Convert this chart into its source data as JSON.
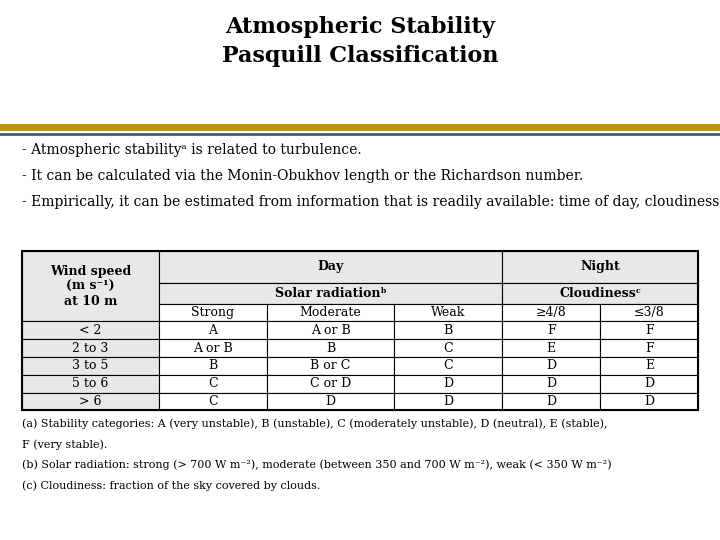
{
  "title_line1": "Atmospheric Stability",
  "title_line2": "Pasquill Classification",
  "title_fontsize": 16,
  "bg_color": "#ffffff",
  "separator_color_gold": "#B8960C",
  "separator_color_blue": "#4A5A7A",
  "body_text": [
    "- Atmospheric stabilityᵃ is related to turbulence.",
    "- It can be calculated via the Monin-Obukhov length or the Richardson number.",
    "- Empirically, it can be estimated from information that is readily available: time of day, cloudiness, and wind speed."
  ],
  "body_fontsize": 10,
  "table_data": [
    [
      "< 2",
      "A",
      "A or B",
      "B",
      "F",
      "F"
    ],
    [
      "2 to 3",
      "A or B",
      "B",
      "C",
      "E",
      "F"
    ],
    [
      "3 to 5",
      "B",
      "B or C",
      "C",
      "D",
      "E"
    ],
    [
      "5 to 6",
      "C",
      "C or D",
      "D",
      "D",
      "D"
    ],
    [
      "> 6",
      "C",
      "D",
      "D",
      "D",
      "D"
    ]
  ],
  "footnotes": [
    "(a) Stability categories: A (very unstable), B (unstable), C (moderately unstable), D (neutral), E (stable),",
    "F (very stable).",
    "(b) Solar radiation: strong (> 700 W m⁻²), moderate (between 350 and 700 W m⁻²), weak (< 350 W m⁻²)",
    "(c) Cloudiness: fraction of the sky covered by clouds."
  ],
  "footnote_fontsize": 8,
  "table_fontsize": 9,
  "col_widths_rel": [
    1.4,
    1.1,
    1.3,
    1.1,
    1.0,
    1.0
  ]
}
